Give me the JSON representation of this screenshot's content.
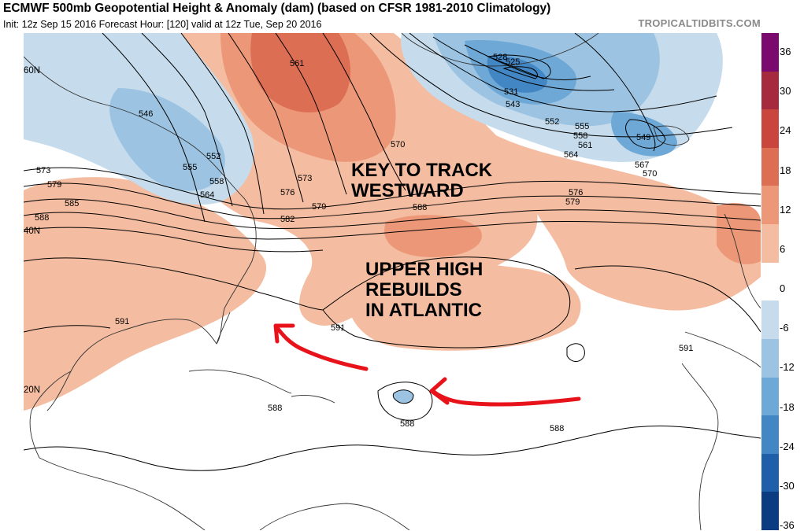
{
  "header": {
    "title": "ECMWF 500mb Geopotential Height & Anomaly (dam) (based on CFSR 1981-2010 Climatology)",
    "subtitle": "Init: 12z Sep 15 2016   Forecast Hour: [120]   valid at 12z Tue, Sep 20 2016",
    "site": "TROPICALTIDBITS.COM"
  },
  "latitudes": [
    "60N",
    "40N",
    "20N"
  ],
  "colorbar": {
    "ticks": [
      "36",
      "30",
      "24",
      "18",
      "12",
      "6",
      "0",
      "-6",
      "-12",
      "-18",
      "-24",
      "-30",
      "-36"
    ],
    "colors": [
      "#7a0a6e",
      "#a52a3e",
      "#c8463e",
      "#dc6e54",
      "#ec9878",
      "#f4bca0",
      "#ffffff",
      "#c6dcec",
      "#9cc4e2",
      "#6ea8d6",
      "#4286c4",
      "#1f5ea8",
      "#0b3b80"
    ]
  },
  "contour_labels": [
    "561",
    "546",
    "552",
    "555",
    "558",
    "564",
    "573",
    "579",
    "585",
    "588",
    "591",
    "573",
    "576",
    "579",
    "582",
    "570",
    "528",
    "525",
    "531",
    "543",
    "552",
    "555",
    "558",
    "561",
    "564",
    "549",
    "567",
    "570",
    "576",
    "579",
    "588",
    "591",
    "591",
    "588",
    "588",
    "588"
  ],
  "annotations": {
    "key_track_line1": "KEY TO TRACK",
    "key_track_line2": "WESTWARD",
    "upper_high_line1": "UPPER HIGH",
    "upper_high_line2": "REBUILDS",
    "upper_high_line3": "IN ATLANTIC"
  },
  "colors": {
    "arrow": "#e8121a"
  }
}
